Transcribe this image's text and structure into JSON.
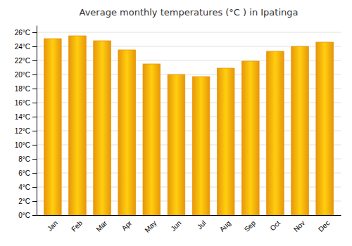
{
  "chart_data": {
    "type": "bar",
    "title": "Average monthly temperatures (°C ) in Ipatinga",
    "categories": [
      "Jan",
      "Feb",
      "Mar",
      "Apr",
      "May",
      "Jun",
      "Jul",
      "Aug",
      "Sep",
      "Oct",
      "Nov",
      "Dec"
    ],
    "values": [
      25.1,
      25.5,
      24.8,
      23.5,
      21.5,
      20.0,
      19.7,
      20.9,
      21.9,
      23.3,
      24.0,
      24.6
    ],
    "color": "#E8960A",
    "ylim": [
      0,
      27
    ],
    "yticks": [
      {
        "value": 0,
        "label": "0°C"
      },
      {
        "value": 2,
        "label": "2°C"
      },
      {
        "value": 4,
        "label": "4°C"
      },
      {
        "value": 6,
        "label": "6°C"
      },
      {
        "value": 8,
        "label": "8°C"
      },
      {
        "value": 10,
        "label": "10°C"
      },
      {
        "value": 12,
        "label": "12°C"
      },
      {
        "value": 14,
        "label": "14°C"
      },
      {
        "value": 16,
        "label": "16°C"
      },
      {
        "value": 18,
        "label": "18°C"
      },
      {
        "value": 20,
        "label": "20°C"
      },
      {
        "value": 22,
        "label": "22°C"
      },
      {
        "value": 24,
        "label": "24°C"
      },
      {
        "value": 26,
        "label": "26°C"
      }
    ],
    "grid": true
  }
}
